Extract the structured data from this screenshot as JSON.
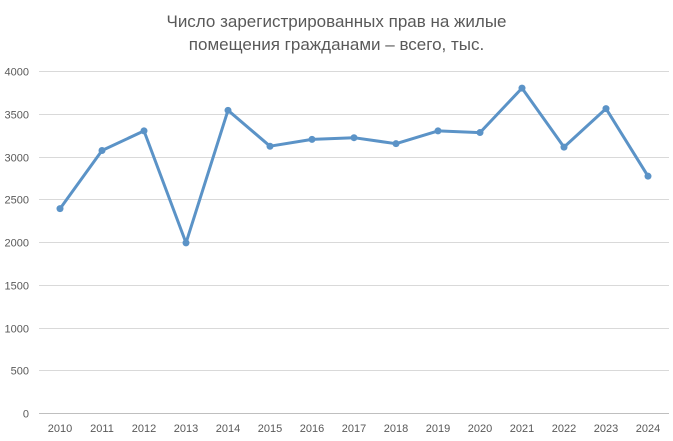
{
  "chart_data": {
    "type": "line",
    "title_lines": [
      "Число зарегистрированных прав на жилые",
      "помещения гражданами – всего, тыс."
    ],
    "xlabel": "",
    "ylabel": "",
    "categories": [
      "2010",
      "2011",
      "2012",
      "2013",
      "2014",
      "2015",
      "2016",
      "2017",
      "2018",
      "2019",
      "2020",
      "2021",
      "2022",
      "2023",
      "2024"
    ],
    "series": [
      {
        "values": [
          2390,
          3070,
          3300,
          1990,
          3540,
          3120,
          3200,
          3220,
          3150,
          3300,
          3280,
          3800,
          3110,
          3560,
          2770
        ]
      }
    ],
    "ylim": [
      0,
      4000
    ],
    "yticks": [
      0,
      500,
      1000,
      1500,
      2000,
      2500,
      3000,
      3500,
      4000
    ],
    "grid": true,
    "legend": "none",
    "colors": {
      "line": "#5b93c7",
      "grid": "#d9d9d9",
      "axis": "#bfbfbf",
      "text": "#595959"
    }
  }
}
